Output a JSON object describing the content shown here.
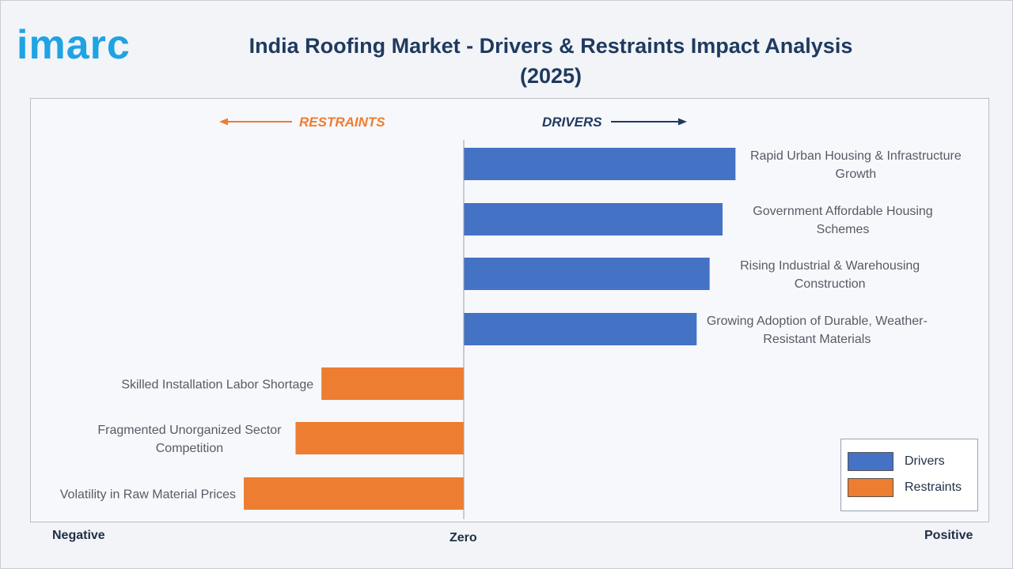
{
  "header": {
    "logo_text": "imarc",
    "title_line1": "India Roofing Market - Drivers & Restraints Impact Analysis",
    "title_line2": "(2025)"
  },
  "axis": {
    "negative": "Negative",
    "zero": "Zero",
    "positive": "Positive"
  },
  "colors": {
    "drivers": "#4472c4",
    "restraints": "#ed7d31",
    "drivers_text": "#1f3a5f",
    "restraints_text": "#ed7d31"
  },
  "chart_data": {
    "type": "bar",
    "orientation": "horizontal",
    "direction_labels": {
      "restraints": "RESTRAINTS",
      "drivers": "DRIVERS"
    },
    "xlim": [
      -1,
      1
    ],
    "grid": false,
    "legend_position": "bottom-right",
    "series": [
      {
        "name": "Drivers",
        "items": [
          {
            "label_lines": [
              "Rapid Urban Housing & Infrastructure",
              "Growth"
            ],
            "value": 0.63
          },
          {
            "label_lines": [
              "Government Affordable Housing",
              "Schemes"
            ],
            "value": 0.6
          },
          {
            "label_lines": [
              "Rising Industrial & Warehousing",
              "Construction"
            ],
            "value": 0.57
          },
          {
            "label_lines": [
              "Growing Adoption of Durable, Weather-",
              "Resistant Materials"
            ],
            "value": 0.54
          }
        ]
      },
      {
        "name": "Restraints",
        "items": [
          {
            "label_lines": [
              "Skilled Installation Labor Shortage"
            ],
            "value": -0.33
          },
          {
            "label_lines": [
              "Fragmented Unorganized Sector",
              "Competition"
            ],
            "value": -0.39
          },
          {
            "label_lines": [
              "Volatility in Raw Material Prices"
            ],
            "value": -0.51
          }
        ]
      }
    ]
  }
}
